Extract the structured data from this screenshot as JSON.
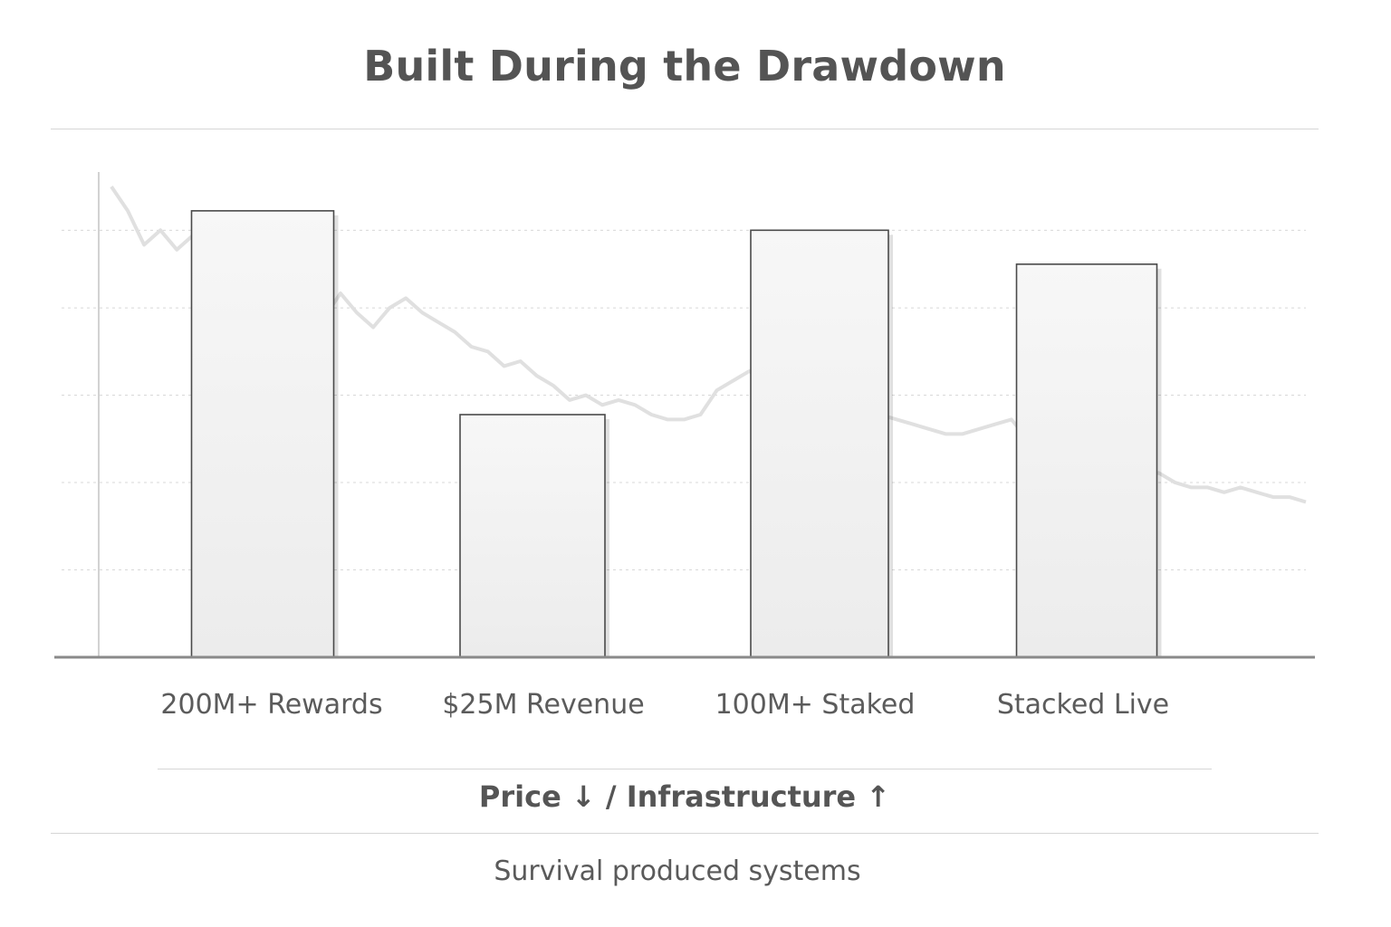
{
  "chart_data": {
    "type": "bar",
    "title": "Built During the Drawdown",
    "categories": [
      "200M+ Rewards",
      "$25M Revenue",
      "100M+ Staked",
      "Stacked Live"
    ],
    "values": [
      92,
      50,
      88,
      81
    ],
    "ylim": [
      0,
      100
    ],
    "grid": true,
    "xlabel": "",
    "ylabel": "",
    "background_series": {
      "name": "price",
      "type": "line",
      "values": [
        97,
        92,
        85,
        88,
        84,
        87,
        80,
        82,
        86,
        83,
        79,
        74,
        73,
        70,
        75,
        71,
        68,
        72,
        74,
        71,
        69,
        67,
        64,
        63,
        60,
        61,
        58,
        56,
        53,
        54,
        52,
        53,
        52,
        50,
        49,
        49,
        50,
        55,
        57,
        59,
        56,
        54,
        53,
        54,
        52,
        51,
        51,
        50,
        49,
        48,
        47,
        46,
        46,
        47,
        48,
        49,
        45,
        43,
        41,
        39,
        38,
        39,
        38,
        37,
        38,
        36,
        35,
        35,
        34,
        35,
        34,
        33,
        33,
        32
      ]
    }
  },
  "subtitle": "Price ↓ / Infrastructure ↑",
  "caption": "Survival produced systems",
  "colors": {
    "bar_fill": "#f1f1f1",
    "bar_stroke": "#4a4a4a",
    "price_line": "#e0e0e0",
    "axis": "#8a8a8a",
    "grid": "#d8d8d8",
    "text": "#555555"
  }
}
